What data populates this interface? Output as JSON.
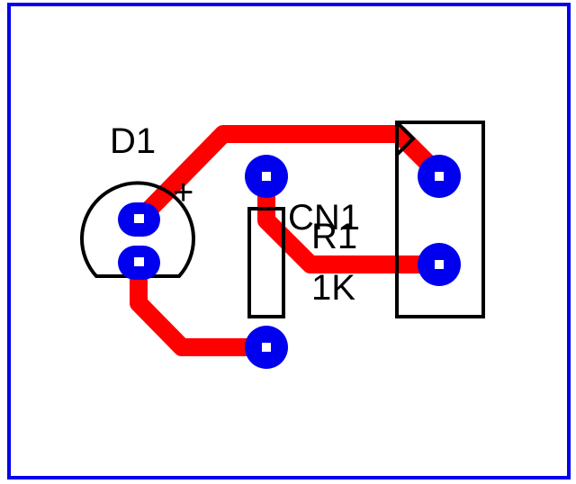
{
  "board": {
    "outline_color": "#0000ee",
    "trace_color": "#ff0000",
    "pad_color": "#0000ee",
    "pad_hole_color": "#ffffff",
    "silkscreen_color": "#000000"
  },
  "components": {
    "d1": {
      "designator": "D1",
      "polarity_mark": "+"
    },
    "r1": {
      "designator": "R1",
      "value": "1K"
    },
    "cn1": {
      "designator": "CN1"
    }
  }
}
